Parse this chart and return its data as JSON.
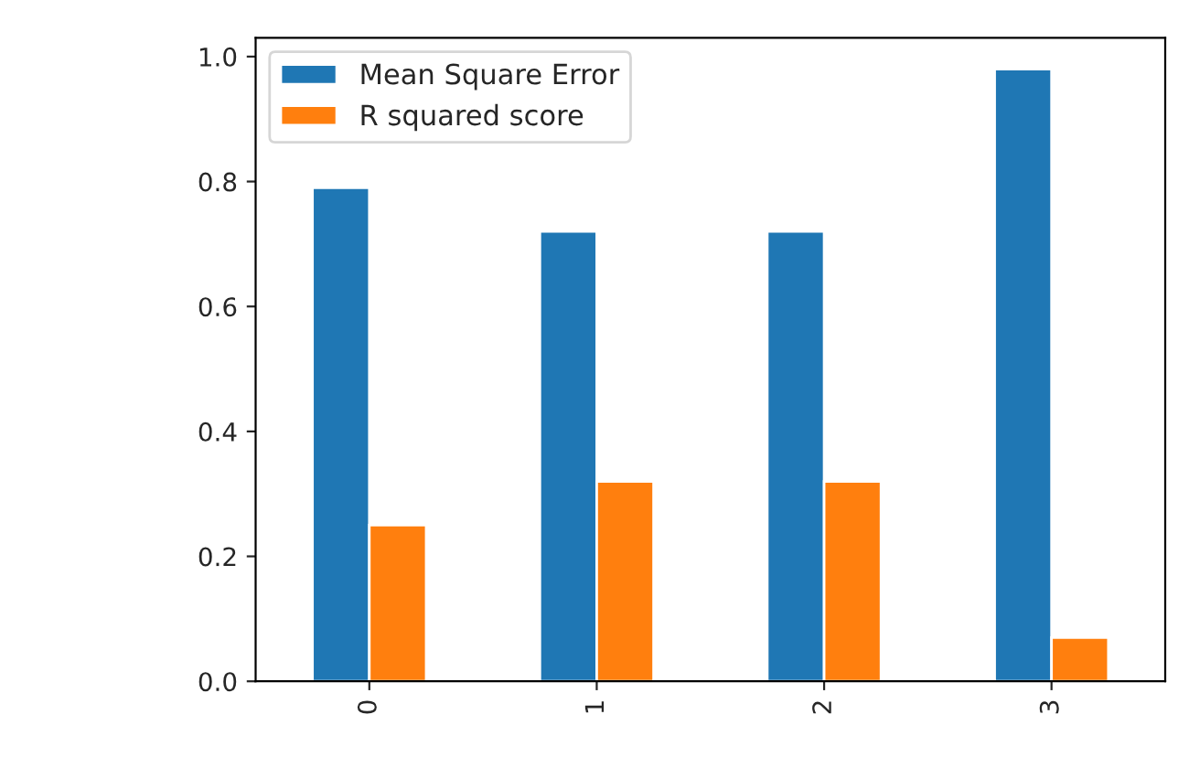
{
  "chart_data": {
    "type": "bar",
    "categories": [
      "0",
      "1",
      "2",
      "3"
    ],
    "series": [
      {
        "name": "Mean Square Error",
        "color": "#1f77b4",
        "values": [
          0.79,
          0.72,
          0.72,
          0.98
        ]
      },
      {
        "name": "R squared score",
        "color": "#ff7f0e",
        "values": [
          0.25,
          0.32,
          0.32,
          0.07
        ]
      }
    ],
    "ylim": [
      0,
      1.03
    ],
    "yticks": [
      {
        "value": 0,
        "label": "0.0"
      },
      0.2,
      0.4,
      0.6,
      0.8,
      {
        "value": 1,
        "label": "1.0"
      }
    ],
    "legend": "top left",
    "grid": false
  }
}
